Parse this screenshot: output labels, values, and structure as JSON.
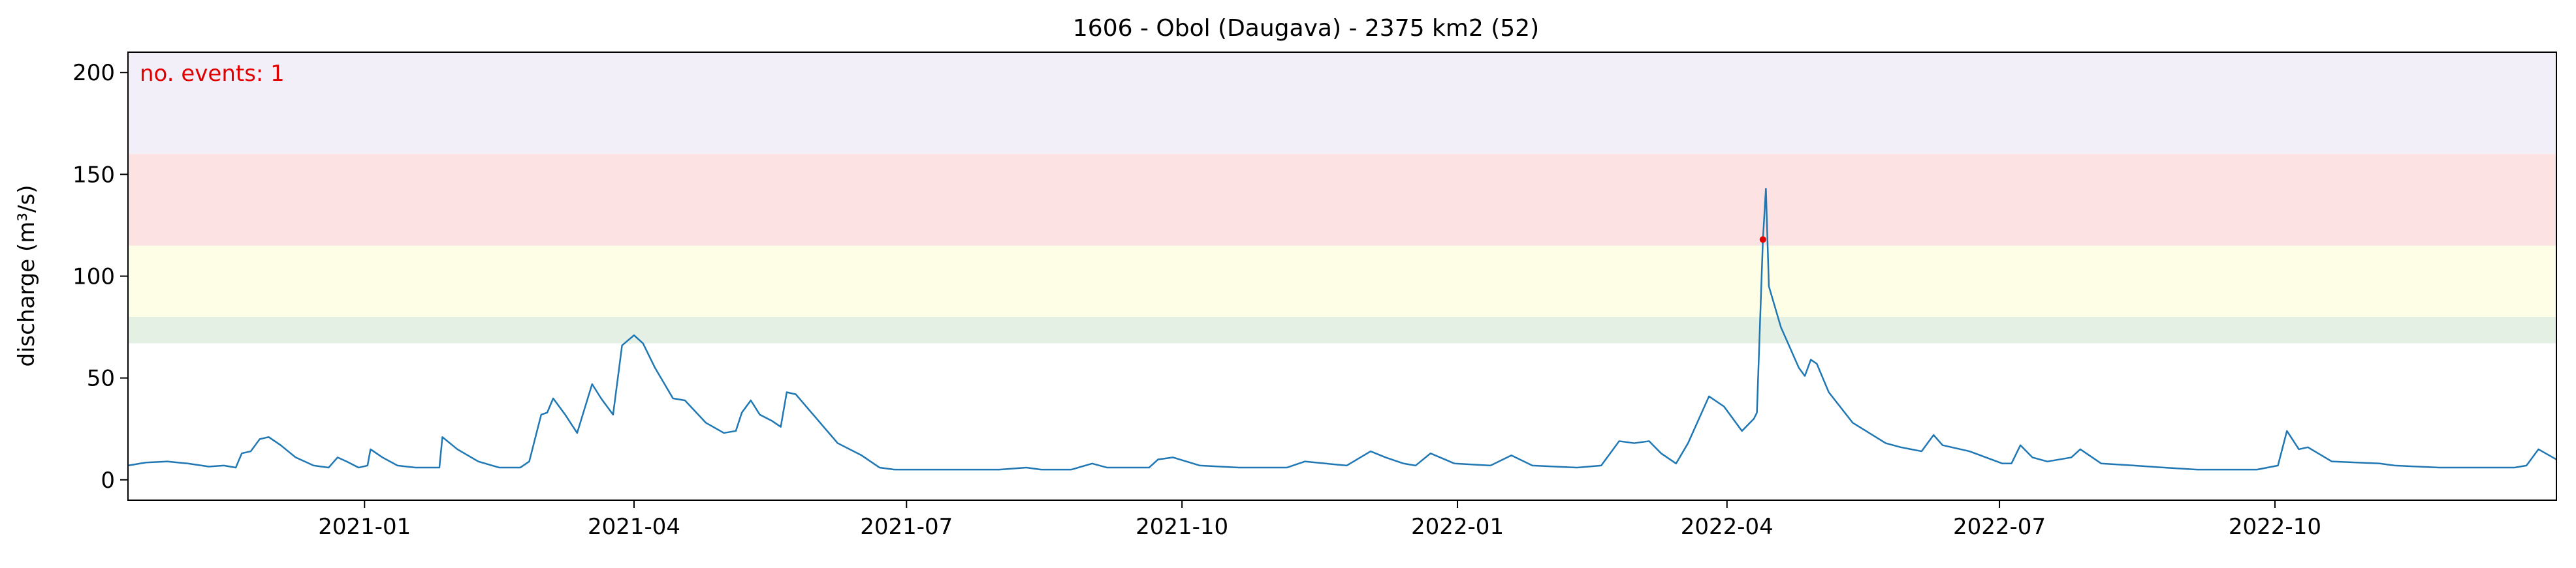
{
  "chart_data": {
    "type": "line",
    "title": "1606 - Obol (Daugava) - 2375 km2 (52)",
    "ylabel": "discharge (m³/s)",
    "annotation": "no. events: 1",
    "annotation_color": "#e00000",
    "color": "#1f77b4",
    "xlim": [
      "2020-10-14",
      "2023-01-03"
    ],
    "xticks": [
      "2021-01",
      "2021-04",
      "2021-07",
      "2021-10",
      "2022-01",
      "2022-04",
      "2022-07",
      "2022-10"
    ],
    "ylim": [
      -10,
      210
    ],
    "yticks": [
      0,
      50,
      100,
      150,
      200
    ],
    "bands": [
      {
        "from": 67,
        "to": 80,
        "color": "#e5f0e5"
      },
      {
        "from": 80,
        "to": 115,
        "color": "#fefde6"
      },
      {
        "from": 115,
        "to": 160,
        "color": "#fde2e4"
      },
      {
        "from": 160,
        "to": 210,
        "color": "#f2eff9"
      }
    ],
    "x": [
      "2020-10-14",
      "2020-10-20",
      "2020-10-27",
      "2020-11-03",
      "2020-11-10",
      "2020-11-15",
      "2020-11-19",
      "2020-11-21",
      "2020-11-24",
      "2020-11-27",
      "2020-11-30",
      "2020-12-04",
      "2020-12-09",
      "2020-12-15",
      "2020-12-20",
      "2020-12-23",
      "2020-12-26",
      "2020-12-30",
      "2021-01-02",
      "2021-01-03",
      "2021-01-07",
      "2021-01-12",
      "2021-01-18",
      "2021-01-26",
      "2021-01-27",
      "2021-02-01",
      "2021-02-08",
      "2021-02-15",
      "2021-02-22",
      "2021-02-25",
      "2021-03-01",
      "2021-03-03",
      "2021-03-05",
      "2021-03-09",
      "2021-03-13",
      "2021-03-18",
      "2021-03-21",
      "2021-03-25",
      "2021-03-28",
      "2021-04-01",
      "2021-04-04",
      "2021-04-08",
      "2021-04-14",
      "2021-04-18",
      "2021-04-25",
      "2021-05-01",
      "2021-05-05",
      "2021-05-07",
      "2021-05-10",
      "2021-05-13",
      "2021-05-17",
      "2021-05-20",
      "2021-05-22",
      "2021-05-25",
      "2021-06-01",
      "2021-06-08",
      "2021-06-16",
      "2021-06-22",
      "2021-06-27",
      "2021-07-15",
      "2021-08-01",
      "2021-08-10",
      "2021-08-15",
      "2021-08-25",
      "2021-09-01",
      "2021-09-06",
      "2021-09-20",
      "2021-09-23",
      "2021-09-28",
      "2021-10-07",
      "2021-10-20",
      "2021-11-05",
      "2021-11-11",
      "2021-11-18",
      "2021-11-25",
      "2021-12-03",
      "2021-12-08",
      "2021-12-14",
      "2021-12-18",
      "2021-12-23",
      "2021-12-31",
      "2022-01-12",
      "2022-01-19",
      "2022-01-26",
      "2022-02-10",
      "2022-02-18",
      "2022-02-24",
      "2022-03-01",
      "2022-03-06",
      "2022-03-10",
      "2022-03-15",
      "2022-03-19",
      "2022-03-26",
      "2022-03-31",
      "2022-04-06",
      "2022-04-10",
      "2022-04-11",
      "2022-04-13",
      "2022-04-14",
      "2022-04-15",
      "2022-04-19",
      "2022-04-25",
      "2022-04-27",
      "2022-04-29",
      "2022-05-01",
      "2022-05-05",
      "2022-05-13",
      "2022-05-24",
      "2022-05-29",
      "2022-06-05",
      "2022-06-09",
      "2022-06-12",
      "2022-06-21",
      "2022-07-02",
      "2022-07-05",
      "2022-07-08",
      "2022-07-12",
      "2022-07-17",
      "2022-07-25",
      "2022-07-28",
      "2022-08-04",
      "2022-08-15",
      "2022-08-25",
      "2022-09-05",
      "2022-09-25",
      "2022-10-02",
      "2022-10-05",
      "2022-10-09",
      "2022-10-12",
      "2022-10-20",
      "2022-11-05",
      "2022-11-10",
      "2022-11-25",
      "2022-12-20",
      "2022-12-24",
      "2022-12-28",
      "2023-01-03"
    ],
    "values": [
      7,
      8.5,
      9,
      8,
      6.5,
      7,
      6,
      13,
      14,
      20,
      21,
      17,
      11,
      7,
      6,
      11,
      9,
      6,
      7,
      15,
      11,
      7,
      6,
      6,
      21,
      15,
      9,
      6,
      6,
      9,
      32,
      33,
      40,
      32,
      23,
      47,
      40,
      32,
      66,
      71,
      67,
      55,
      40,
      39,
      28,
      23,
      24,
      33,
      39,
      32,
      29,
      26,
      43,
      42,
      30,
      18,
      12,
      6,
      5,
      5,
      5,
      6,
      5,
      5,
      8,
      6,
      6,
      10,
      11,
      7,
      6,
      6,
      9,
      8,
      7,
      14,
      11,
      8,
      7,
      13,
      8,
      7,
      12,
      7,
      6,
      7,
      19,
      18,
      19,
      13,
      8,
      18,
      41,
      36,
      24,
      30,
      33,
      118,
      143,
      95,
      75,
      55,
      51,
      59,
      57,
      43,
      28,
      18,
      16,
      14,
      22,
      17,
      14,
      8,
      8,
      17,
      11,
      9,
      11,
      15,
      8,
      7,
      6,
      5,
      5,
      7,
      24,
      15,
      16,
      9,
      8,
      7,
      6,
      6,
      7,
      15,
      10
    ],
    "events": {
      "x": [
        "2022-04-13"
      ],
      "values": [
        118
      ],
      "color": "#e00000"
    }
  }
}
